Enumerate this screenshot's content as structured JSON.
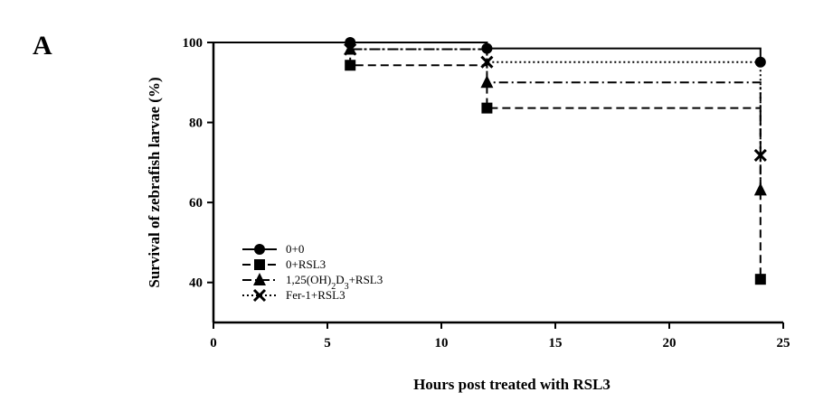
{
  "panel_label": "A",
  "chart_data": {
    "type": "line",
    "step": true,
    "title": "",
    "xlabel": "Hours post treated with RSL3",
    "ylabel": "Survival of zebrafish larvae (%)",
    "xlim": [
      0,
      25
    ],
    "ylim": [
      30,
      100
    ],
    "x_ticks": [
      0,
      5,
      10,
      15,
      20,
      25
    ],
    "y_ticks": [
      40,
      60,
      80,
      100
    ],
    "grid": false,
    "legend_position": "lower-left",
    "series": [
      {
        "name": "0+0",
        "marker": "circle",
        "dash": "solid",
        "x": [
          0,
          6,
          12,
          24
        ],
        "y": [
          100,
          100,
          98.5,
          95.1
        ]
      },
      {
        "name": "0+RSL3",
        "marker": "square",
        "dash": "dashed",
        "x": [
          0,
          6,
          12,
          24
        ],
        "y": [
          100,
          94.3,
          83.6,
          40.8
        ]
      },
      {
        "name": "1,25(OH)2D3+RSL3",
        "legend_parts": [
          {
            "text": "1,25(OH)",
            "sub": false
          },
          {
            "text": "2",
            "sub": true
          },
          {
            "text": "D",
            "sub": false
          },
          {
            "text": "3",
            "sub": true
          },
          {
            "text": "+RSL3",
            "sub": false
          }
        ],
        "marker": "triangle",
        "dash": "dashdot",
        "x": [
          0,
          6,
          12,
          24
        ],
        "y": [
          100,
          98.3,
          90.0,
          63.1
        ]
      },
      {
        "name": "Fer-1+RSL3",
        "marker": "x",
        "dash": "dotted",
        "x": [
          0,
          6,
          12,
          24
        ],
        "y": [
          100,
          98.3,
          95.1,
          71.8
        ]
      }
    ]
  },
  "colors": {
    "ink": "#000000",
    "background": "#ffffff"
  }
}
